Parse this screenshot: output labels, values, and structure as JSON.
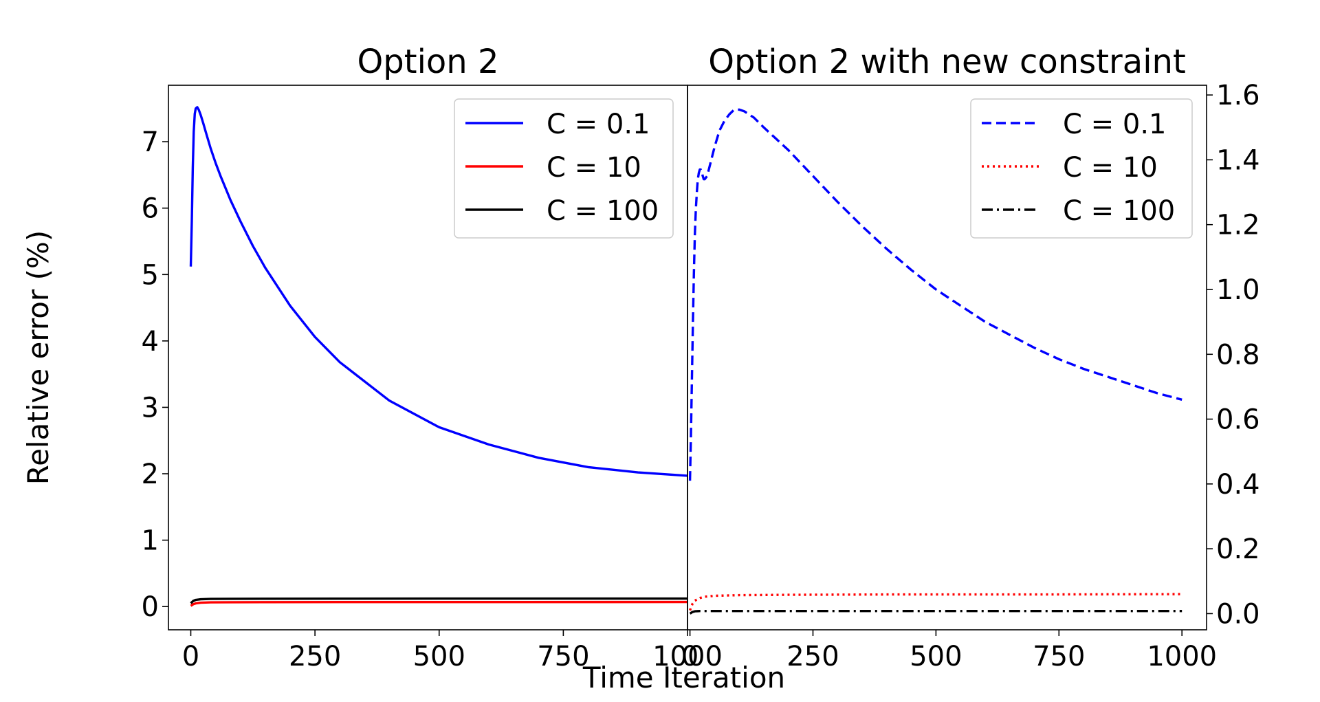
{
  "figure": {
    "ylabel": "Relative error (%)",
    "xlabel": "Time Iteration"
  },
  "chart_data": [
    {
      "type": "line",
      "title": "Option 2",
      "xlim": [
        -45,
        1000
      ],
      "ylim": [
        -0.35,
        7.85
      ],
      "xticks": [
        "0",
        "250",
        "500",
        "750",
        "1000"
      ],
      "xtick_values": [
        0,
        250,
        500,
        750,
        1000
      ],
      "yticks": [
        "0",
        "1",
        "2",
        "3",
        "4",
        "5",
        "6",
        "7"
      ],
      "ytick_values": [
        0,
        1,
        2,
        3,
        4,
        5,
        6,
        7
      ],
      "yaxis_side": "left",
      "legend_position": "top-right",
      "series": [
        {
          "name": "C = 0.1",
          "color": "#0000ff",
          "dash": "solid",
          "x": [
            0,
            2,
            4,
            6,
            8,
            10,
            13,
            16,
            20,
            25,
            30,
            40,
            50,
            60,
            70,
            80,
            100,
            125,
            150,
            200,
            250,
            300,
            400,
            500,
            600,
            700,
            800,
            900,
            1000
          ],
          "y": [
            5.12,
            5.8,
            6.6,
            7.15,
            7.42,
            7.5,
            7.52,
            7.48,
            7.4,
            7.28,
            7.15,
            6.9,
            6.68,
            6.48,
            6.3,
            6.12,
            5.8,
            5.43,
            5.1,
            4.53,
            4.06,
            3.68,
            3.1,
            2.7,
            2.44,
            2.24,
            2.1,
            2.02,
            1.97
          ]
        },
        {
          "name": "C = 10",
          "color": "#ff0000",
          "dash": "solid",
          "x": [
            0,
            5,
            10,
            20,
            40,
            80,
            150,
            300,
            500,
            1000
          ],
          "y": [
            0.01,
            0.035,
            0.048,
            0.058,
            0.063,
            0.065,
            0.066,
            0.067,
            0.067,
            0.068
          ]
        },
        {
          "name": "C = 100",
          "color": "#000000",
          "dash": "solid",
          "x": [
            0,
            5,
            10,
            20,
            40,
            80,
            150,
            300,
            500,
            1000
          ],
          "y": [
            0.05,
            0.085,
            0.1,
            0.11,
            0.115,
            0.117,
            0.118,
            0.119,
            0.12,
            0.12
          ]
        }
      ]
    },
    {
      "type": "line",
      "title": "Option 2 with new constraint",
      "xlim": [
        -5,
        1050
      ],
      "ylim": [
        -0.05,
        1.63
      ],
      "xticks": [
        "0",
        "250",
        "500",
        "750",
        "1000"
      ],
      "xtick_values": [
        0,
        250,
        500,
        750,
        1000
      ],
      "yticks": [
        "0.0",
        "0.2",
        "0.4",
        "0.6",
        "0.8",
        "1.0",
        "1.2",
        "1.4",
        "1.6"
      ],
      "ytick_values": [
        0,
        0.2,
        0.4,
        0.6,
        0.8,
        1.0,
        1.2,
        1.4,
        1.6
      ],
      "yaxis_side": "right",
      "legend_position": "top-right",
      "series": [
        {
          "name": "C = 0.1",
          "color": "#0000ff",
          "dash": "dashed",
          "x": [
            0,
            2,
            4,
            6,
            8,
            10,
            12,
            14,
            16,
            18,
            20,
            22,
            24,
            26,
            28,
            30,
            35,
            40,
            50,
            60,
            70,
            80,
            90,
            100,
            110,
            120,
            130,
            140,
            150,
            175,
            200,
            250,
            300,
            350,
            400,
            450,
            500,
            550,
            600,
            650,
            700,
            750,
            800,
            850,
            900,
            950,
            1000
          ],
          "y": [
            0.41,
            0.55,
            0.72,
            0.9,
            1.05,
            1.17,
            1.25,
            1.3,
            1.34,
            1.36,
            1.37,
            1.37,
            1.36,
            1.35,
            1.34,
            1.34,
            1.35,
            1.38,
            1.44,
            1.49,
            1.52,
            1.54,
            1.555,
            1.555,
            1.55,
            1.54,
            1.53,
            1.515,
            1.5,
            1.465,
            1.43,
            1.35,
            1.27,
            1.195,
            1.125,
            1.06,
            1.0,
            0.95,
            0.9,
            0.86,
            0.82,
            0.785,
            0.755,
            0.73,
            0.705,
            0.68,
            0.66
          ]
        },
        {
          "name": "C = 10",
          "color": "#ff0000",
          "dash": "dotted",
          "x": [
            0,
            5,
            10,
            20,
            30,
            50,
            100,
            200,
            400,
            700,
            1000
          ],
          "y": [
            0.01,
            0.03,
            0.04,
            0.048,
            0.052,
            0.055,
            0.057,
            0.058,
            0.059,
            0.059,
            0.06
          ]
        },
        {
          "name": "C = 100",
          "color": "#000000",
          "dash": "dashdot",
          "x": [
            0,
            5,
            10,
            20,
            50,
            100,
            500,
            1000
          ],
          "y": [
            0.0,
            0.005,
            0.007,
            0.008,
            0.008,
            0.008,
            0.008,
            0.008
          ]
        }
      ]
    }
  ]
}
